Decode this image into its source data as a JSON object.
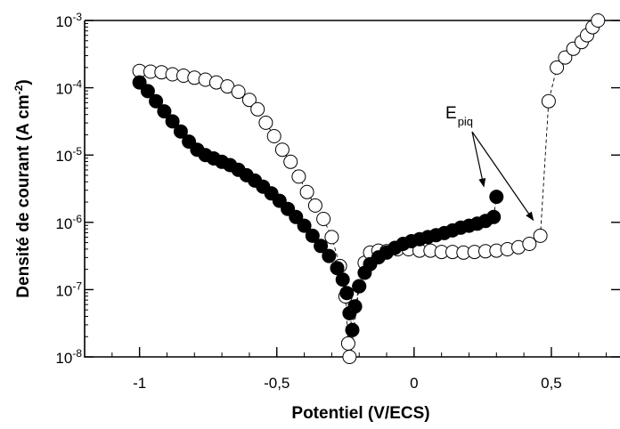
{
  "chart_data": {
    "type": "scatter",
    "title": "",
    "xlabel": "Potentiel (V/ECS)",
    "ylabel_main": "Densité de courant (A cm",
    "ylabel_sup": "-2",
    "ylabel_close": ")",
    "xlim": [
      -1.2,
      0.75
    ],
    "ylim_log10": [
      -8,
      -3
    ],
    "y_scale": "log",
    "x_ticks": [
      {
        "value": -1,
        "label": "-1"
      },
      {
        "value": -0.5,
        "label": "-0,5"
      },
      {
        "value": 0,
        "label": "0"
      },
      {
        "value": 0.5,
        "label": "0,5"
      }
    ],
    "y_ticks": [
      {
        "exp": -3,
        "base": "10",
        "sup": "-3"
      },
      {
        "exp": -4,
        "base": "10",
        "sup": "-4"
      },
      {
        "exp": -5,
        "base": "10",
        "sup": "-5"
      },
      {
        "exp": -6,
        "base": "10",
        "sup": "-6"
      },
      {
        "exp": -7,
        "base": "10",
        "sup": "-7"
      },
      {
        "exp": -8,
        "base": "10",
        "sup": "-8"
      }
    ],
    "annotation": {
      "base": "E",
      "sub": "piq",
      "targets": [
        [
          0.28,
          -5.6
        ],
        [
          0.46,
          -6.1
        ]
      ]
    },
    "legend": "none",
    "grid": false,
    "series": [
      {
        "marker": "open-circle",
        "connector": "dashed",
        "points": [
          [
            -1.0,
            -3.75
          ],
          [
            -0.96,
            -3.76
          ],
          [
            -0.92,
            -3.77
          ],
          [
            -0.88,
            -3.8
          ],
          [
            -0.84,
            -3.82
          ],
          [
            -0.8,
            -3.85
          ],
          [
            -0.76,
            -3.88
          ],
          [
            -0.72,
            -3.92
          ],
          [
            -0.68,
            -3.98
          ],
          [
            -0.64,
            -4.06
          ],
          [
            -0.6,
            -4.18
          ],
          [
            -0.57,
            -4.32
          ],
          [
            -0.54,
            -4.52
          ],
          [
            -0.51,
            -4.72
          ],
          [
            -0.48,
            -4.92
          ],
          [
            -0.45,
            -5.1
          ],
          [
            -0.42,
            -5.32
          ],
          [
            -0.39,
            -5.55
          ],
          [
            -0.36,
            -5.75
          ],
          [
            -0.33,
            -5.95
          ],
          [
            -0.3,
            -6.22
          ],
          [
            -0.27,
            -6.65
          ],
          [
            -0.25,
            -7.1
          ],
          [
            -0.24,
            -7.8
          ],
          [
            -0.235,
            -8.1
          ],
          [
            -0.2,
            -6.95
          ],
          [
            -0.18,
            -6.6
          ],
          [
            -0.16,
            -6.45
          ],
          [
            -0.13,
            -6.42
          ],
          [
            -0.1,
            -6.43
          ],
          [
            -0.06,
            -6.4
          ],
          [
            -0.02,
            -6.4
          ],
          [
            0.02,
            -6.42
          ],
          [
            0.06,
            -6.42
          ],
          [
            0.1,
            -6.44
          ],
          [
            0.14,
            -6.44
          ],
          [
            0.18,
            -6.45
          ],
          [
            0.22,
            -6.44
          ],
          [
            0.26,
            -6.43
          ],
          [
            0.3,
            -6.42
          ],
          [
            0.34,
            -6.4
          ],
          [
            0.38,
            -6.37
          ],
          [
            0.42,
            -6.32
          ],
          [
            0.46,
            -6.2
          ],
          [
            0.49,
            -4.2
          ],
          [
            0.52,
            -3.7
          ],
          [
            0.55,
            -3.55
          ],
          [
            0.58,
            -3.42
          ],
          [
            0.61,
            -3.32
          ],
          [
            0.63,
            -3.22
          ],
          [
            0.65,
            -3.1
          ],
          [
            0.67,
            -3.0
          ]
        ]
      },
      {
        "marker": "filled-circle",
        "connector": "dashed",
        "points": [
          [
            -1.0,
            -3.92
          ],
          [
            -0.97,
            -4.05
          ],
          [
            -0.94,
            -4.2
          ],
          [
            -0.91,
            -4.35
          ],
          [
            -0.88,
            -4.5
          ],
          [
            -0.85,
            -4.65
          ],
          [
            -0.82,
            -4.8
          ],
          [
            -0.79,
            -4.92
          ],
          [
            -0.76,
            -5.0
          ],
          [
            -0.73,
            -5.05
          ],
          [
            -0.7,
            -5.1
          ],
          [
            -0.67,
            -5.15
          ],
          [
            -0.64,
            -5.22
          ],
          [
            -0.61,
            -5.3
          ],
          [
            -0.58,
            -5.38
          ],
          [
            -0.55,
            -5.47
          ],
          [
            -0.52,
            -5.57
          ],
          [
            -0.49,
            -5.68
          ],
          [
            -0.46,
            -5.8
          ],
          [
            -0.43,
            -5.92
          ],
          [
            -0.4,
            -6.05
          ],
          [
            -0.37,
            -6.2
          ],
          [
            -0.34,
            -6.35
          ],
          [
            -0.31,
            -6.5
          ],
          [
            -0.28,
            -6.68
          ],
          [
            -0.26,
            -6.85
          ],
          [
            -0.245,
            -7.05
          ],
          [
            -0.235,
            -7.35
          ],
          [
            -0.225,
            -7.6
          ],
          [
            -0.215,
            -7.25
          ],
          [
            -0.2,
            -6.95
          ],
          [
            -0.18,
            -6.75
          ],
          [
            -0.16,
            -6.62
          ],
          [
            -0.13,
            -6.52
          ],
          [
            -0.1,
            -6.45
          ],
          [
            -0.07,
            -6.38
          ],
          [
            -0.04,
            -6.32
          ],
          [
            -0.01,
            -6.28
          ],
          [
            0.02,
            -6.25
          ],
          [
            0.05,
            -6.22
          ],
          [
            0.08,
            -6.19
          ],
          [
            0.11,
            -6.16
          ],
          [
            0.14,
            -6.12
          ],
          [
            0.17,
            -6.08
          ],
          [
            0.2,
            -6.05
          ],
          [
            0.23,
            -6.02
          ],
          [
            0.26,
            -5.98
          ],
          [
            0.29,
            -5.92
          ],
          [
            0.3,
            -5.62
          ]
        ]
      }
    ]
  }
}
